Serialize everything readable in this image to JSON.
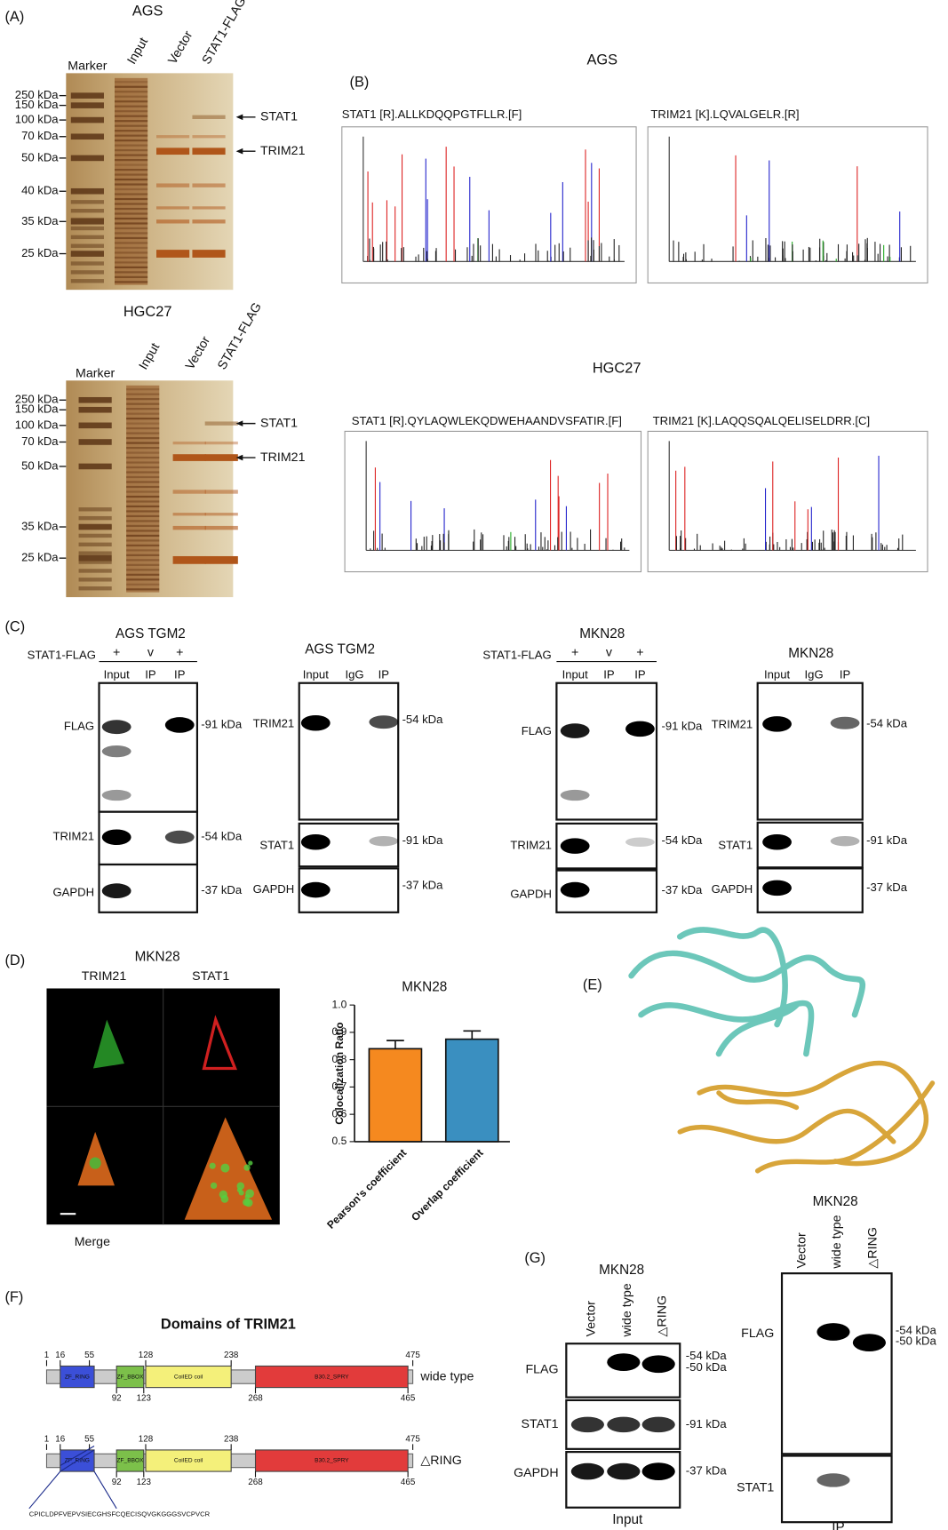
{
  "figure": {
    "A": {
      "label": "(A)",
      "gels": [
        {
          "title": "AGS",
          "lanes": [
            "Marker",
            "Input",
            "Vector",
            "STAT1-FLAG"
          ],
          "markers": [
            "250 kDa",
            "150 kDa",
            "100 kDa",
            "70 kDa",
            "50 kDa",
            "40 kDa",
            "35 kDa",
            "25 kDa"
          ],
          "bands": [
            "STAT1",
            "TRIM21"
          ]
        },
        {
          "title": "HGC27",
          "lanes": [
            "Marker",
            "Input",
            "Vector",
            "STAT1-FLAG"
          ],
          "markers": [
            "250 kDa",
            "150 kDa",
            "100 kDa",
            "70 kDa",
            "50 kDa",
            "35 kDa",
            "25 kDa"
          ],
          "bands": [
            "STAT1",
            "TRIM21"
          ]
        }
      ]
    },
    "B": {
      "label": "(B)",
      "groups": [
        {
          "title": "AGS",
          "spectra": [
            "STAT1  [R].ALLKDQQPGTFLLR.[F]",
            "TRIM21  [K].LQVALGELR.[R]"
          ]
        },
        {
          "title": "HGC27",
          "spectra": [
            "STAT1  [R].QYLAQWLEKQDWEHAANDVSFATIR.[F]",
            "TRIM21  [K].LAQQSQALQELISELDRR.[C]"
          ]
        }
      ]
    },
    "C": {
      "label": "(C)",
      "blots": [
        {
          "title": "AGS TGM2",
          "condition": "STAT1-FLAG",
          "signs": [
            "+",
            "v",
            "+"
          ],
          "lanes": [
            "Input",
            "IP",
            "IP"
          ],
          "rows": [
            {
              "protein": "FLAG",
              "size": "-91 kDa"
            },
            {
              "protein": "TRIM21",
              "size": "-54 kDa"
            },
            {
              "protein": "GAPDH",
              "size": "-37 kDa"
            }
          ]
        },
        {
          "title": "AGS TGM2",
          "lanes": [
            "Input",
            "IgG",
            "IP"
          ],
          "rows": [
            {
              "protein": "TRIM21",
              "size": "-54 kDa"
            },
            {
              "protein": "STAT1",
              "size": "-91 kDa"
            },
            {
              "protein": "GAPDH",
              "size": "-37 kDa"
            }
          ]
        },
        {
          "title": "MKN28",
          "condition": "STAT1-FLAG",
          "signs": [
            "+",
            "v",
            "+"
          ],
          "lanes": [
            "Input",
            "IP",
            "IP"
          ],
          "rows": [
            {
              "protein": "FLAG",
              "size": "-91 kDa"
            },
            {
              "protein": "TRIM21",
              "size": "-54 kDa"
            },
            {
              "protein": "GAPDH",
              "size": "-37 kDa"
            }
          ]
        },
        {
          "title": "MKN28",
          "lanes": [
            "Input",
            "IgG",
            "IP"
          ],
          "rows": [
            {
              "protein": "TRIM21",
              "size": "-54 kDa"
            },
            {
              "protein": "STAT1",
              "size": "-91 kDa"
            },
            {
              "protein": "GAPDH",
              "size": "-37 kDa"
            }
          ]
        }
      ]
    },
    "D": {
      "label": "(D)",
      "title": "MKN28",
      "channels": [
        "TRIM21",
        "STAT1"
      ],
      "merge": "Merge"
    },
    "E": {
      "label": "(E)"
    },
    "F": {
      "label": "(F)",
      "title": "Domains of TRIM21",
      "domains": [
        "ZF_RING",
        "ZF_BBOX",
        "CoiIED coil",
        "B30.2_SPRY"
      ],
      "constructs": [
        {
          "name": "wide type",
          "top": [
            1,
            16,
            55,
            128,
            238,
            475
          ],
          "bottom": [
            92,
            123,
            268,
            465
          ]
        },
        {
          "name": "△RING",
          "top": [
            1,
            16,
            55,
            128,
            238,
            475
          ],
          "bottom": [
            92,
            123,
            268,
            465
          ],
          "sequence": "CPICLDPFVEPVSIECGHSFCQECISQVGKGGGSVCPVCR"
        }
      ]
    },
    "G": {
      "label": "(G)",
      "blots": [
        {
          "title": "MKN28",
          "lanes": [
            "Vector",
            "wide type",
            "△RING"
          ],
          "rows": [
            {
              "protein": "FLAG",
              "sizes": [
                "-54 kDa",
                "-50 kDa"
              ]
            },
            {
              "protein": "STAT1",
              "sizes": [
                "-91 kDa"
              ]
            },
            {
              "protein": "GAPDH",
              "sizes": [
                "-37 kDa"
              ]
            }
          ],
          "footer": "Input"
        },
        {
          "title": "MKN28",
          "lanes": [
            "Vector",
            "wide type",
            "△RING"
          ],
          "rows": [
            {
              "protein": "FLAG",
              "sizes": [
                "-54 kDa",
                "-50 kDa"
              ]
            },
            {
              "protein": "STAT1",
              "sizes": []
            }
          ],
          "footer": "IP"
        }
      ]
    }
  },
  "chart_data": {
    "type": "bar",
    "title": "MKN28",
    "y_label": "Colocalization Ratio",
    "categories": [
      "Pearson's coefficient",
      "Overlap  coefficient"
    ],
    "values": [
      0.84,
      0.875
    ],
    "errors": [
      0.03,
      0.03
    ],
    "colors": [
      "#f5891f",
      "#3a8fc0"
    ],
    "ylim": [
      0.5,
      1.0
    ],
    "yticks": [
      0.5,
      0.6,
      0.7,
      0.8,
      0.9,
      {
        "value": 1,
        "label": "1.0"
      }
    ]
  }
}
